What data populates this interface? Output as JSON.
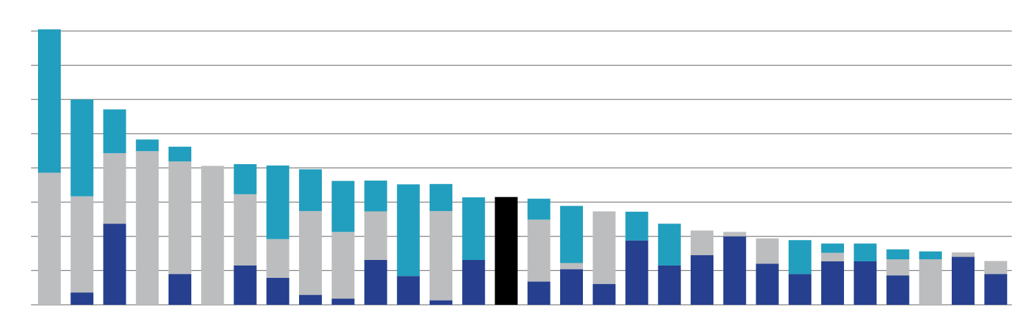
{
  "chart_data": {
    "type": "bar",
    "stacked": true,
    "title": "",
    "xlabel": "",
    "ylabel": "",
    "grid": true,
    "ylim": [
      0,
      8
    ],
    "ytick_step": 1,
    "categories": [
      "",
      "",
      "",
      "",
      "",
      "",
      "",
      "",
      "",
      "",
      "",
      "",
      "",
      "",
      "",
      "",
      "",
      "",
      "",
      "",
      "",
      "",
      "",
      "",
      "",
      "",
      "",
      "",
      "",
      ""
    ],
    "series": [
      {
        "color": "#26408f",
        "values": [
          0.0,
          0.36,
          2.37,
          0.0,
          0.9,
          0.0,
          1.15,
          0.79,
          0.29,
          0.18,
          1.31,
          0.84,
          0.13,
          1.31,
          0.0,
          0.68,
          1.04,
          0.61,
          1.88,
          1.15,
          1.45,
          2.0,
          1.2,
          0.9,
          1.27,
          1.27,
          0.86,
          0.0,
          1.4,
          0.9
        ]
      },
      {
        "color": "#bcbdbf",
        "values": [
          3.86,
          2.81,
          2.06,
          4.49,
          3.29,
          4.06,
          2.08,
          1.13,
          2.45,
          1.95,
          1.42,
          0.0,
          2.61,
          0.0,
          0.0,
          1.81,
          0.18,
          2.12,
          0.0,
          0.0,
          0.72,
          0.13,
          0.74,
          0.0,
          0.25,
          0.0,
          0.47,
          1.33,
          0.13,
          0.38
        ]
      },
      {
        "color": "#229fbe",
        "values": [
          4.19,
          2.83,
          1.28,
          0.34,
          0.43,
          0.0,
          0.88,
          2.15,
          1.22,
          1.49,
          0.9,
          2.68,
          0.79,
          1.83,
          0.0,
          0.61,
          1.67,
          0.0,
          0.84,
          1.22,
          0.0,
          0.0,
          0.0,
          0.99,
          0.27,
          0.52,
          0.29,
          0.23,
          0.0,
          0.0
        ]
      },
      {
        "color": "#000000",
        "values": [
          0,
          0,
          0,
          0,
          0,
          0,
          0,
          0,
          0,
          0,
          0,
          0,
          0,
          0,
          3.15,
          0,
          0,
          0,
          0,
          0,
          0,
          0,
          0,
          0,
          0,
          0,
          0,
          0,
          0,
          0
        ]
      }
    ],
    "override_first_color": {
      "5": "#229fbe"
    }
  }
}
